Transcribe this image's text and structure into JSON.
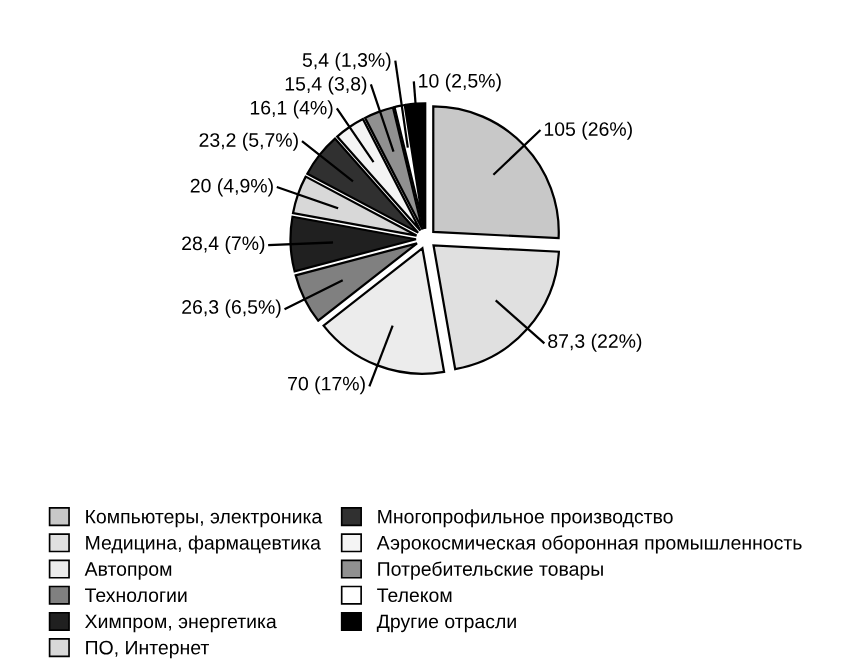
{
  "chart_data": {
    "type": "pie",
    "categories": [
      "Компьютеры, электроника",
      "Медицина, фармацевтика",
      "Автопром",
      "Технологии",
      "Химпром, энергетика",
      "ПО, Интернет",
      "Многопрофильное производство",
      "Аэрокосмическая оборонная промышленность",
      "Потребительские товары",
      "Телеком",
      "Другие отрасли"
    ],
    "values": [
      105,
      87.3,
      70,
      26.3,
      28.4,
      20,
      23.2,
      16.1,
      15.4,
      5.4,
      10
    ],
    "value_labels": [
      "105 (26%)",
      "87,3 (22%)",
      "70 (17%)",
      "26,3 (6,5%)",
      "28,4 (7%)",
      "20 (4,9%)",
      "23,2 (5,7%)",
      "16,1 (4%)",
      "15,4 (3,8)",
      "5,4 (1,3%)",
      "10 (2,5%)"
    ],
    "colors": [
      "#c8c8c8",
      "#e0e0e0",
      "#ececec",
      "#808080",
      "#202020",
      "#d8d8d8",
      "#303030",
      "#f4f4f4",
      "#909090",
      "#ffffff",
      "#000000"
    ],
    "legend": "bottom"
  }
}
